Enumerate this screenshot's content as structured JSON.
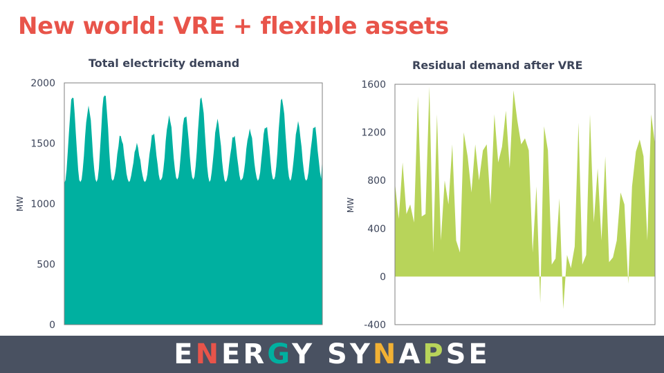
{
  "slide": {
    "title": "New world: VRE + flexible assets"
  },
  "brand": {
    "name": "ENERGY SYNAPSE",
    "letters": [
      {
        "ch": "E",
        "color": "#ffffff"
      },
      {
        "ch": "N",
        "color": "#e8544a"
      },
      {
        "ch": "E",
        "color": "#ffffff"
      },
      {
        "ch": "R",
        "color": "#ffffff"
      },
      {
        "ch": "G",
        "color": "#00b0a0"
      },
      {
        "ch": "Y",
        "color": "#ffffff"
      },
      {
        "ch": " ",
        "color": "#ffffff"
      },
      {
        "ch": "S",
        "color": "#ffffff"
      },
      {
        "ch": "Y",
        "color": "#ffffff"
      },
      {
        "ch": "N",
        "color": "#f2b134"
      },
      {
        "ch": "A",
        "color": "#ffffff"
      },
      {
        "ch": "P",
        "color": "#b8d45a"
      },
      {
        "ch": "S",
        "color": "#ffffff"
      },
      {
        "ch": "E",
        "color": "#ffffff"
      }
    ]
  },
  "chart_data": [
    {
      "type": "area",
      "title": "Total electricity demand",
      "ylabel": "MW",
      "ylim": [
        0,
        2000
      ],
      "yticks": [
        "0",
        "500",
        "1000",
        "1500",
        "2000"
      ],
      "ytick_values": [
        0,
        500,
        1000,
        1500,
        2000
      ],
      "color": "#00b0a0",
      "grid": false,
      "peaks": [
        1890,
        1800,
        1920,
        1560,
        1480,
        1580,
        1720,
        1740,
        1880,
        1680,
        1560,
        1610,
        1650,
        1870,
        1660,
        1640
      ],
      "troughs": [
        1170,
        1180,
        1180,
        1190,
        1180,
        1180,
        1200,
        1200,
        1200,
        1180,
        1180,
        1200,
        1190,
        1200,
        1190,
        1190
      ]
    },
    {
      "type": "area",
      "title": "Residual demand after VRE",
      "ylabel": "MW",
      "ylim": [
        -400,
        1600
      ],
      "yticks": [
        "-400",
        "0",
        "400",
        "800",
        "1200",
        "1600"
      ],
      "ytick_values": [
        -400,
        0,
        400,
        800,
        1200,
        1600
      ],
      "color": "#b8d45a",
      "grid": false,
      "values": [
        780,
        480,
        950,
        520,
        600,
        450,
        1500,
        500,
        520,
        1580,
        200,
        1350,
        300,
        800,
        600,
        1100,
        300,
        200,
        1200,
        1000,
        700,
        1100,
        800,
        1050,
        1100,
        600,
        1350,
        950,
        1080,
        1380,
        900,
        1550,
        1300,
        1100,
        1150,
        1050,
        200,
        750,
        -220,
        1250,
        1050,
        100,
        150,
        650,
        -270,
        180,
        70,
        250,
        1280,
        100,
        180,
        1350,
        450,
        900,
        300,
        1000,
        120,
        160,
        300,
        700,
        600,
        -60,
        750,
        1040,
        1140,
        1000,
        300,
        1350,
        1100
      ]
    }
  ]
}
